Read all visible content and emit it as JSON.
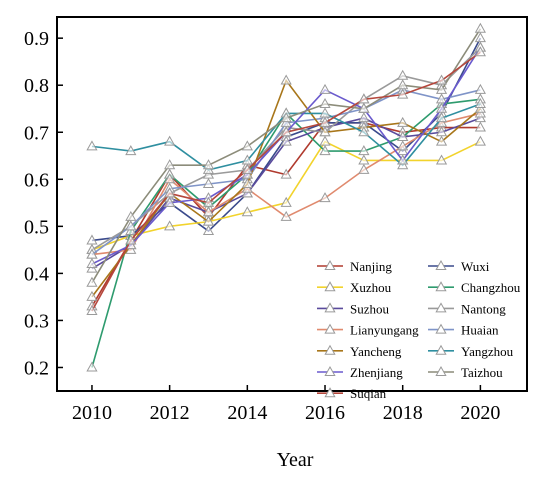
{
  "chart_data": {
    "type": "line",
    "title": "",
    "xlabel": "Year",
    "ylabel": "",
    "xlim": [
      2009.1,
      2021.2
    ],
    "ylim": [
      0.15,
      0.945
    ],
    "x_ticks": [
      "2010",
      "2012",
      "2014",
      "2016",
      "2018",
      "2020"
    ],
    "x_tick_values": [
      2010,
      2012,
      2014,
      2016,
      2018,
      2020
    ],
    "y_ticks": [
      "0.2",
      "0.3",
      "0.4",
      "0.5",
      "0.6",
      "0.7",
      "0.8",
      "0.9"
    ],
    "y_tick_values": [
      0.2,
      0.3,
      0.4,
      0.5,
      0.6,
      0.7,
      0.8,
      0.9
    ],
    "grid": false,
    "marker": "open-triangle",
    "legend_position": "bottom-right",
    "x": [
      2010,
      2011,
      2012,
      2013,
      2014,
      2015,
      2016,
      2017,
      2018,
      2019,
      2020
    ],
    "series": [
      {
        "name": "Nanjing",
        "color": "#b03a2e",
        "values": [
          0.33,
          0.47,
          0.61,
          0.52,
          0.63,
          0.61,
          0.72,
          0.72,
          0.7,
          0.71,
          0.71
        ]
      },
      {
        "name": "Wuxi",
        "color": "#3a4a8c",
        "values": [
          0.47,
          0.48,
          0.55,
          0.49,
          0.57,
          0.69,
          0.72,
          0.72,
          0.66,
          0.74,
          0.9
        ]
      },
      {
        "name": "Xuzhou",
        "color": "#f2d32c",
        "values": [
          0.45,
          0.48,
          0.5,
          0.51,
          0.53,
          0.55,
          0.68,
          0.64,
          0.64,
          0.64,
          0.68
        ]
      },
      {
        "name": "Changzhou",
        "color": "#2e9b6e",
        "values": [
          0.2,
          0.49,
          0.61,
          0.54,
          0.61,
          0.74,
          0.66,
          0.66,
          0.69,
          0.76,
          0.77
        ]
      },
      {
        "name": "Suzhou",
        "color": "#5a4a9c",
        "values": [
          0.41,
          0.46,
          0.56,
          0.53,
          0.57,
          0.68,
          0.71,
          0.73,
          0.69,
          0.7,
          0.73
        ]
      },
      {
        "name": "Nantong",
        "color": "#9a9a9a",
        "values": [
          0.45,
          0.5,
          0.57,
          0.61,
          0.62,
          0.71,
          0.7,
          0.77,
          0.82,
          0.8,
          0.88
        ]
      },
      {
        "name": "Lianyungang",
        "color": "#e08a6e",
        "values": [
          0.44,
          0.45,
          0.6,
          0.53,
          0.58,
          0.52,
          0.56,
          0.62,
          0.67,
          0.72,
          0.74
        ]
      },
      {
        "name": "Huaian",
        "color": "#7f94c8",
        "values": [
          0.44,
          0.5,
          0.58,
          0.59,
          0.6,
          0.72,
          0.73,
          0.75,
          0.79,
          0.77,
          0.79
        ]
      },
      {
        "name": "Yancheng",
        "color": "#a8761a",
        "values": [
          0.35,
          0.46,
          0.57,
          0.51,
          0.59,
          0.81,
          0.7,
          0.71,
          0.72,
          0.68,
          0.75
        ]
      },
      {
        "name": "Yangzhou",
        "color": "#2f8fa0",
        "values": [
          0.67,
          0.66,
          0.68,
          0.62,
          0.64,
          0.74,
          0.74,
          0.7,
          0.63,
          0.73,
          0.76
        ]
      },
      {
        "name": "Zhenjiang",
        "color": "#6a5acd",
        "values": [
          0.42,
          0.46,
          0.55,
          0.56,
          0.61,
          0.7,
          0.79,
          0.75,
          0.64,
          0.75,
          0.88
        ]
      },
      {
        "name": "Taizhou",
        "color": "#8c8c7a",
        "values": [
          0.38,
          0.52,
          0.63,
          0.63,
          0.67,
          0.73,
          0.76,
          0.75,
          0.8,
          0.79,
          0.92
        ]
      },
      {
        "name": "Suqian",
        "color": "#b5473c",
        "values": [
          0.32,
          0.47,
          0.57,
          0.55,
          0.62,
          0.7,
          0.72,
          0.77,
          0.78,
          0.81,
          0.87
        ]
      }
    ]
  }
}
